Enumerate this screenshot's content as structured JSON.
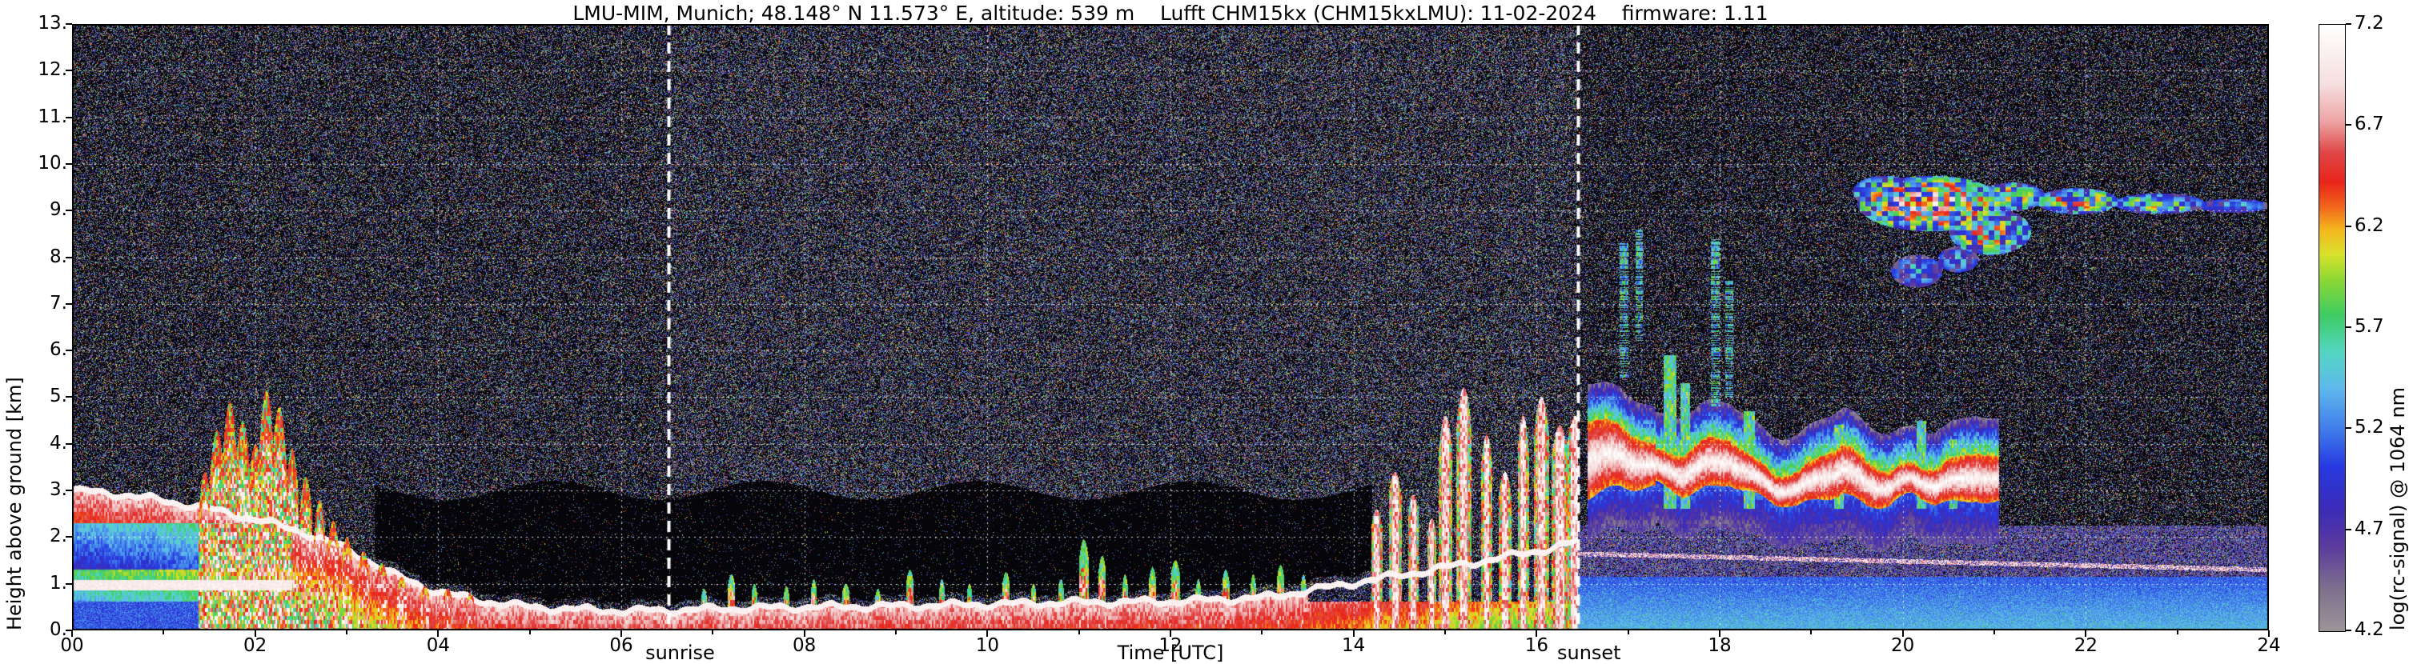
{
  "chart_data": {
    "type": "heatmap",
    "title": "LMU-MIM, Munich; 48.148° N 11.573° E, altitude: 539 m    Lufft CHM15kx (CHM15kxLMU): 11-02-2024    firmware: 1.11",
    "xlabel": "Time [UTC]",
    "ylabel": "Height above ground [km]",
    "colorbar_label": "log(rc-signal) @ 1064 nm",
    "x_range": [
      0,
      24
    ],
    "x_tick_values": [
      0,
      2,
      4,
      6,
      8,
      10,
      12,
      14,
      16,
      18,
      20,
      22,
      24
    ],
    "x_tick_labels": [
      "00",
      "02",
      "04",
      "06",
      "08",
      "10",
      "12",
      "14",
      "16",
      "18",
      "20",
      "22",
      "24"
    ],
    "y_range": [
      0,
      13
    ],
    "y_tick_values": [
      0,
      1,
      2,
      3,
      4,
      5,
      6,
      7,
      8,
      9,
      10,
      11,
      12,
      13
    ],
    "y_tick_labels": [
      "0.",
      "1.",
      "2.",
      "3.",
      "4.",
      "5.",
      "6.",
      "7.",
      "8.",
      "9.",
      "10.",
      "11.",
      "12.",
      "13."
    ],
    "colorbar_range": [
      4.2,
      7.2
    ],
    "colorbar_tick_values": [
      7.2,
      6.7,
      6.2,
      5.7,
      5.2,
      4.7,
      4.2
    ],
    "colorbar_tick_labels": [
      "7.2",
      "6.7",
      "6.2",
      "5.7",
      "5.2",
      "4.7",
      "4.2"
    ],
    "grid": true,
    "annotations": [
      {
        "label": "sunrise",
        "x": 6.52
      },
      {
        "label": "sunset",
        "x": 16.45
      }
    ],
    "colormap_stops": [
      [
        0.0,
        "#9b9599"
      ],
      [
        0.07,
        "#7e6f8e"
      ],
      [
        0.14,
        "#5a3a9e"
      ],
      [
        0.2,
        "#3c2bb8"
      ],
      [
        0.27,
        "#2739e0"
      ],
      [
        0.33,
        "#3f7bea"
      ],
      [
        0.4,
        "#5fb9ec"
      ],
      [
        0.46,
        "#53d6c2"
      ],
      [
        0.52,
        "#3ecb63"
      ],
      [
        0.58,
        "#8ed833"
      ],
      [
        0.62,
        "#d8e22c"
      ],
      [
        0.66,
        "#f4b81e"
      ],
      [
        0.7,
        "#f2641c"
      ],
      [
        0.74,
        "#e8241a"
      ],
      [
        0.79,
        "#e04848"
      ],
      [
        0.84,
        "#eda4a4"
      ],
      [
        0.9,
        "#f6dede"
      ],
      [
        1.0,
        "#ffffff"
      ]
    ],
    "features": {
      "bl_top": [
        [
          0,
          3.0
        ],
        [
          0.5,
          2.92
        ],
        [
          1.0,
          2.78
        ],
        [
          1.5,
          2.6
        ],
        [
          2.0,
          2.38
        ],
        [
          2.5,
          2.12
        ],
        [
          3.0,
          1.75
        ],
        [
          3.5,
          1.2
        ],
        [
          4.0,
          0.82
        ],
        [
          4.5,
          0.62
        ],
        [
          5.0,
          0.5
        ],
        [
          5.5,
          0.45
        ],
        [
          6.0,
          0.42
        ],
        [
          6.5,
          0.43
        ],
        [
          7.0,
          0.46
        ],
        [
          7.5,
          0.48
        ],
        [
          8.0,
          0.5
        ],
        [
          9.0,
          0.52
        ],
        [
          10.0,
          0.56
        ],
        [
          11.0,
          0.6
        ],
        [
          12.0,
          0.62
        ],
        [
          13.0,
          0.7
        ],
        [
          13.5,
          0.85
        ],
        [
          14.0,
          1.02
        ],
        [
          14.5,
          1.18
        ],
        [
          15.0,
          1.35
        ],
        [
          15.5,
          1.52
        ],
        [
          16.0,
          1.7
        ],
        [
          16.45,
          1.9
        ]
      ],
      "plumes_early": [
        [
          1.45,
          0.07,
          3.4
        ],
        [
          1.58,
          0.08,
          4.3
        ],
        [
          1.72,
          0.08,
          4.9
        ],
        [
          1.86,
          0.08,
          4.5
        ],
        [
          2.0,
          0.08,
          4.0
        ],
        [
          2.12,
          0.08,
          5.15
        ],
        [
          2.26,
          0.08,
          4.8
        ],
        [
          2.4,
          0.07,
          3.9
        ],
        [
          2.55,
          0.07,
          3.3
        ],
        [
          2.7,
          0.06,
          2.8
        ],
        [
          2.85,
          0.06,
          2.35
        ],
        [
          3.0,
          0.06,
          2.0
        ],
        [
          3.18,
          0.06,
          1.7
        ],
        [
          3.38,
          0.06,
          1.45
        ],
        [
          3.6,
          0.05,
          1.15
        ],
        [
          3.85,
          0.05,
          0.95
        ],
        [
          4.1,
          0.05,
          0.9
        ],
        [
          4.35,
          0.04,
          0.82
        ]
      ],
      "plumes_midday": [
        [
          6.9,
          0.03,
          0.9
        ],
        [
          7.2,
          0.04,
          1.2
        ],
        [
          7.45,
          0.03,
          1.0
        ],
        [
          7.8,
          0.03,
          0.95
        ],
        [
          8.1,
          0.03,
          1.1
        ],
        [
          8.45,
          0.04,
          1.0
        ],
        [
          8.8,
          0.03,
          0.9
        ],
        [
          9.15,
          0.04,
          1.3
        ],
        [
          9.5,
          0.03,
          1.1
        ],
        [
          9.8,
          0.03,
          1.0
        ],
        [
          10.2,
          0.04,
          1.25
        ],
        [
          10.5,
          0.03,
          1.0
        ],
        [
          10.8,
          0.03,
          1.1
        ],
        [
          11.05,
          0.05,
          1.95
        ],
        [
          11.25,
          0.04,
          1.6
        ],
        [
          11.5,
          0.03,
          1.2
        ],
        [
          11.8,
          0.04,
          1.35
        ],
        [
          12.05,
          0.05,
          1.5
        ],
        [
          12.3,
          0.03,
          1.1
        ],
        [
          12.6,
          0.04,
          1.3
        ],
        [
          12.9,
          0.03,
          1.2
        ],
        [
          13.2,
          0.04,
          1.4
        ],
        [
          13.45,
          0.03,
          1.2
        ]
      ],
      "towers_pm": [
        [
          14.25,
          0.06,
          2.6
        ],
        [
          14.45,
          0.07,
          3.4
        ],
        [
          14.65,
          0.06,
          2.9
        ],
        [
          14.85,
          0.05,
          2.4
        ],
        [
          15.0,
          0.07,
          4.6
        ],
        [
          15.2,
          0.08,
          5.2
        ],
        [
          15.45,
          0.06,
          4.2
        ],
        [
          15.65,
          0.07,
          3.4
        ],
        [
          15.85,
          0.06,
          4.6
        ],
        [
          16.05,
          0.08,
          5.0
        ],
        [
          16.25,
          0.09,
          4.4
        ],
        [
          16.42,
          0.1,
          4.6
        ]
      ],
      "cloud_path": [
        [
          16.6,
          3.7
        ],
        [
          16.9,
          3.75
        ],
        [
          17.1,
          3.6
        ],
        [
          17.35,
          3.45
        ],
        [
          17.6,
          3.35
        ],
        [
          17.85,
          3.55
        ],
        [
          18.1,
          3.65
        ],
        [
          18.35,
          3.3
        ],
        [
          18.6,
          3.05
        ],
        [
          18.85,
          3.0
        ],
        [
          19.1,
          3.3
        ],
        [
          19.35,
          3.45
        ],
        [
          19.6,
          3.15
        ],
        [
          19.85,
          3.05
        ],
        [
          20.1,
          3.25
        ],
        [
          20.35,
          3.1
        ],
        [
          20.6,
          3.2
        ],
        [
          20.8,
          3.35
        ],
        [
          21.0,
          3.2
        ]
      ],
      "fringe_towers": [
        [
          17.45,
          0.07,
          5.9
        ],
        [
          17.62,
          0.05,
          5.3
        ],
        [
          18.32,
          0.06,
          4.7
        ],
        [
          19.3,
          0.05,
          4.4
        ],
        [
          20.2,
          0.05,
          4.5
        ],
        [
          20.55,
          0.04,
          4.1
        ]
      ],
      "streaks_cyan": [
        [
          16.95,
          0.05,
          8.3,
          5.4
        ],
        [
          17.12,
          0.04,
          8.6,
          6.2
        ],
        [
          17.95,
          0.05,
          8.4,
          4.8
        ],
        [
          18.1,
          0.04,
          7.5,
          5.0
        ]
      ],
      "cirrus": [
        [
          20.3,
          9.15,
          0.8,
          0.6,
          1.0
        ],
        [
          20.95,
          8.55,
          0.45,
          0.5,
          0.85
        ],
        [
          21.2,
          9.3,
          0.35,
          0.3,
          0.8
        ],
        [
          21.9,
          9.2,
          0.45,
          0.28,
          0.85
        ],
        [
          22.8,
          9.15,
          0.5,
          0.22,
          0.75
        ],
        [
          23.6,
          9.1,
          0.4,
          0.15,
          0.55
        ],
        [
          19.8,
          9.4,
          0.35,
          0.35,
          0.7
        ],
        [
          20.15,
          7.7,
          0.28,
          0.35,
          0.5
        ],
        [
          20.6,
          7.95,
          0.22,
          0.28,
          0.5
        ]
      ]
    }
  }
}
